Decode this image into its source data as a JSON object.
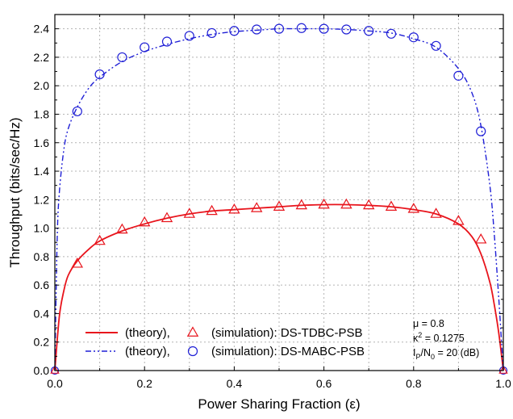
{
  "chart_data": {
    "type": "line",
    "xlabel": "Power Sharing Fraction (ε)",
    "ylabel": "Throughput (bits/sec/Hz)",
    "xlim": [
      0,
      1
    ],
    "ylim": [
      0,
      2.5
    ],
    "xticks": [
      "0.0",
      "0.2",
      "0.4",
      "0.6",
      "0.8",
      "1.0"
    ],
    "yticks": [
      "0.0",
      "0.2",
      "0.4",
      "0.6",
      "0.8",
      "1.0",
      "1.2",
      "1.4",
      "1.6",
      "1.8",
      "2.0",
      "2.2",
      "2.4"
    ],
    "grid": true,
    "legend_position": "bottom-left",
    "series": [
      {
        "name": "(theory),",
        "style": "solid line",
        "color": "#e8141c",
        "x": [
          0,
          0.01,
          0.02,
          0.03,
          0.05,
          0.075,
          0.1,
          0.15,
          0.2,
          0.25,
          0.3,
          0.35,
          0.4,
          0.45,
          0.5,
          0.55,
          0.6,
          0.65,
          0.7,
          0.75,
          0.8,
          0.85,
          0.9,
          0.93,
          0.95,
          0.97,
          0.98,
          0.99,
          1.0
        ],
        "y": [
          0.0,
          0.38,
          0.56,
          0.67,
          0.77,
          0.85,
          0.91,
          0.98,
          1.03,
          1.07,
          1.1,
          1.12,
          1.13,
          1.14,
          1.15,
          1.16,
          1.165,
          1.165,
          1.16,
          1.15,
          1.13,
          1.1,
          1.03,
          0.94,
          0.82,
          0.62,
          0.46,
          0.26,
          0.0
        ]
      },
      {
        "name": "(simulation): DS-TDBC-PSB",
        "style": "triangle markers",
        "color": "#e8141c",
        "x": [
          0.05,
          0.1,
          0.15,
          0.2,
          0.25,
          0.3,
          0.35,
          0.4,
          0.45,
          0.5,
          0.55,
          0.6,
          0.65,
          0.7,
          0.75,
          0.8,
          0.85,
          0.9,
          0.95
        ],
        "y": [
          0.75,
          0.91,
          0.99,
          1.04,
          1.07,
          1.1,
          1.12,
          1.13,
          1.14,
          1.15,
          1.16,
          1.165,
          1.165,
          1.16,
          1.15,
          1.135,
          1.1,
          1.05,
          0.92
        ]
      },
      {
        "name": "(theory),",
        "style": "dash-dot line",
        "color": "#1f1fd6",
        "x": [
          0,
          0.005,
          0.01,
          0.02,
          0.03,
          0.05,
          0.075,
          0.1,
          0.15,
          0.2,
          0.25,
          0.3,
          0.35,
          0.4,
          0.45,
          0.5,
          0.55,
          0.6,
          0.65,
          0.7,
          0.75,
          0.8,
          0.85,
          0.9,
          0.93,
          0.95,
          0.97,
          0.98,
          0.99,
          0.995,
          1.0
        ],
        "y": [
          0.0,
          0.9,
          1.25,
          1.55,
          1.7,
          1.85,
          1.98,
          2.06,
          2.17,
          2.24,
          2.29,
          2.33,
          2.36,
          2.38,
          2.39,
          2.4,
          2.4,
          2.4,
          2.395,
          2.385,
          2.37,
          2.33,
          2.27,
          2.12,
          1.95,
          1.72,
          1.3,
          0.95,
          0.5,
          0.25,
          0.0
        ]
      },
      {
        "name": "(simulation): DS-MABC-PSB",
        "style": "circle markers",
        "color": "#1f1fd6",
        "x": [
          0.05,
          0.1,
          0.15,
          0.2,
          0.25,
          0.3,
          0.35,
          0.4,
          0.45,
          0.5,
          0.55,
          0.6,
          0.65,
          0.7,
          0.75,
          0.8,
          0.85,
          0.9,
          0.95
        ],
        "y": [
          1.82,
          2.08,
          2.2,
          2.27,
          2.31,
          2.35,
          2.37,
          2.385,
          2.395,
          2.4,
          2.405,
          2.4,
          2.395,
          2.385,
          2.365,
          2.34,
          2.28,
          2.07,
          1.68
        ]
      }
    ],
    "endpoint_markers": [
      {
        "x": 0.0,
        "y": 0.0
      },
      {
        "x": 1.0,
        "y": 0.0
      }
    ],
    "legend": [
      {
        "line_label": "(theory),",
        "marker_label": "(simulation): DS-TDBC-PSB",
        "color": "#e8141c",
        "line_style": "solid",
        "marker": "triangle"
      },
      {
        "line_label": "(theory),",
        "marker_label": "(simulation): DS-MABC-PSB",
        "color": "#1f1fd6",
        "line_style": "dash-dot",
        "marker": "circle"
      }
    ],
    "annotations": {
      "mu": "μ = 0.8",
      "kappa_base": "κ",
      "kappa_exp": "2",
      "kappa_value": " = 0.1275",
      "ip": "I",
      "ip_sub": "P",
      "n0": "/N",
      "n0_sub": "0",
      "snr_value": " = 20 (dB)"
    }
  }
}
